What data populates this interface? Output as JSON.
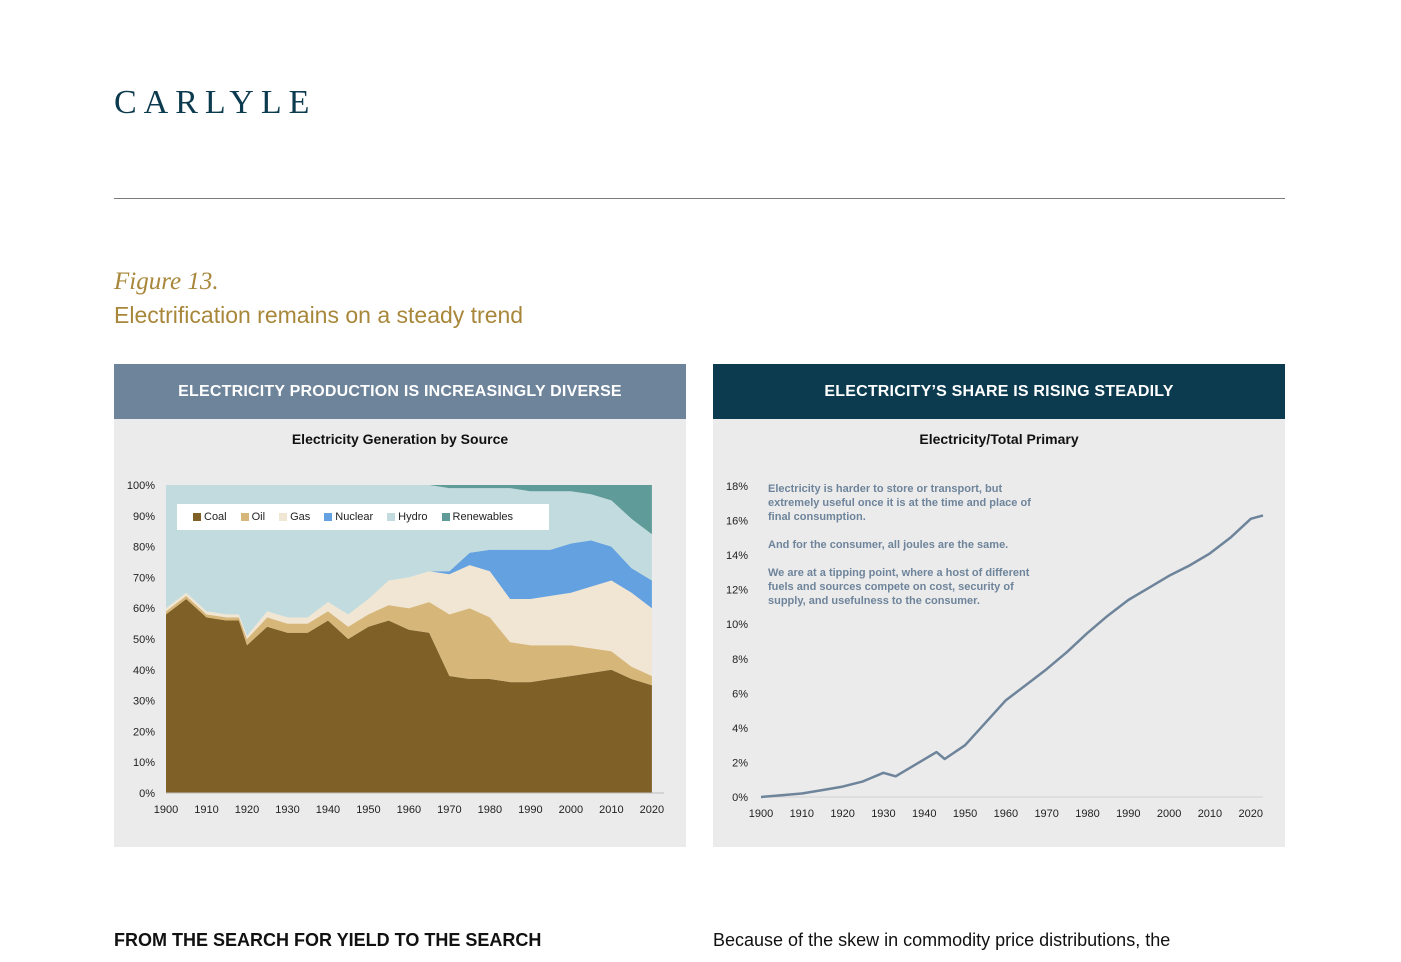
{
  "header": {
    "logo_text": "CARLYLE"
  },
  "figure": {
    "number": "Figure 13.",
    "title": "Electrification remains on a steady trend"
  },
  "left_panel": {
    "header": "ELECTRICITY PRODUCTION IS INCREASINGLY DIVERSE",
    "chart_title": "Electricity Generation by Source"
  },
  "right_panel": {
    "header": "ELECTRICITY’S SHARE IS RISING STEADILY",
    "chart_title": "Electricity/Total Primary",
    "annotation": [
      "Electricity is harder to store or transport, but extremely useful once it is at the time and place of final consumption.",
      "And for the consumer, all joules are the same.",
      "We are at a tipping point, where a host of different fuels and sources  compete on cost, security of supply, and usefulness to the consumer."
    ]
  },
  "colors": {
    "coal": "#7f6127",
    "oil": "#d7b779",
    "gas": "#f1e6d3",
    "nuclear": "#63a1e0",
    "hydro": "#c2dbde",
    "renewables": "#5f9b98",
    "line": "#6e849b",
    "left_header": "#6e849b",
    "right_header": "#0c3a4e",
    "gold": "#a8873a"
  },
  "chart_data": [
    {
      "type": "area",
      "title": "Electricity Generation by Source",
      "stacked": true,
      "x": [
        1900,
        1905,
        1910,
        1915,
        1918,
        1920,
        1925,
        1930,
        1935,
        1940,
        1945,
        1950,
        1955,
        1960,
        1965,
        1970,
        1975,
        1980,
        1985,
        1990,
        1995,
        2000,
        2005,
        2010,
        2015,
        2020
      ],
      "x_ticks": [
        "1900",
        "1910",
        "1920",
        "1930",
        "1940",
        "1950",
        "1960",
        "1970",
        "1980",
        "1990",
        "2000",
        "2010",
        "2020"
      ],
      "y_ticks": [
        "0%",
        "10%",
        "20%",
        "30%",
        "40%",
        "50%",
        "60%",
        "70%",
        "80%",
        "90%",
        "100%"
      ],
      "ylim": [
        0,
        100
      ],
      "legend_position": "top-left",
      "series": [
        {
          "name": "Coal",
          "values": [
            58,
            63,
            57,
            56,
            56,
            48,
            54,
            52,
            52,
            56,
            50,
            54,
            56,
            53,
            52,
            38,
            37,
            37,
            36,
            36,
            37,
            38,
            39,
            40,
            37,
            35
          ]
        },
        {
          "name": "Oil",
          "values": [
            1,
            1,
            1,
            1,
            1,
            2,
            3,
            3,
            3,
            3,
            4,
            4,
            5,
            7,
            10,
            20,
            23,
            20,
            13,
            12,
            11,
            10,
            8,
            6,
            4,
            3
          ]
        },
        {
          "name": "Gas",
          "values": [
            1,
            1,
            1,
            1,
            1,
            1,
            2,
            2,
            2,
            3,
            4,
            5,
            8,
            10,
            10,
            13,
            14,
            15,
            14,
            15,
            16,
            17,
            20,
            23,
            24,
            22
          ]
        },
        {
          "name": "Nuclear",
          "values": [
            0,
            0,
            0,
            0,
            0,
            0,
            0,
            0,
            0,
            0,
            0,
            0,
            0,
            0,
            0,
            1,
            4,
            7,
            16,
            16,
            15,
            16,
            15,
            11,
            8,
            9
          ]
        },
        {
          "name": "Hydro",
          "values": [
            40,
            35,
            41,
            42,
            42,
            49,
            41,
            43,
            43,
            38,
            42,
            37,
            31,
            30,
            28,
            27,
            21,
            20,
            20,
            19,
            19,
            17,
            15,
            15,
            16,
            15
          ]
        },
        {
          "name": "Renewables",
          "values": [
            0,
            0,
            0,
            0,
            0,
            0,
            0,
            0,
            0,
            0,
            0,
            0,
            0,
            0,
            0,
            1,
            1,
            1,
            1,
            2,
            2,
            2,
            3,
            5,
            11,
            16
          ]
        }
      ]
    },
    {
      "type": "line",
      "title": "Electricity/Total Primary",
      "x": [
        1900,
        1905,
        1910,
        1915,
        1920,
        1925,
        1930,
        1933,
        1938,
        1943,
        1945,
        1950,
        1955,
        1960,
        1965,
        1970,
        1975,
        1980,
        1985,
        1990,
        1995,
        2000,
        2005,
        2010,
        2015,
        2020,
        2023
      ],
      "series": [
        {
          "name": "",
          "values": [
            0,
            0.1,
            0.2,
            0.4,
            0.6,
            0.9,
            1.4,
            1.2,
            1.9,
            2.6,
            2.2,
            3.0,
            4.3,
            5.6,
            6.5,
            7.4,
            8.4,
            9.5,
            10.5,
            11.4,
            12.1,
            12.8,
            13.4,
            14.1,
            15.0,
            16.1,
            16.3
          ]
        }
      ],
      "x_ticks": [
        "1900",
        "1910",
        "1920",
        "1930",
        "1940",
        "1950",
        "1960",
        "1970",
        "1980",
        "1990",
        "2000",
        "2010",
        "2020"
      ],
      "y_ticks": [
        "0%",
        "2%",
        "4%",
        "6%",
        "8%",
        "10%",
        "12%",
        "14%",
        "16%",
        "18%"
      ],
      "ylim": [
        0,
        18
      ]
    }
  ],
  "body": {
    "left_heading": "FROM THE SEARCH FOR YIELD TO THE SEARCH",
    "right_text": "Because of the skew in commodity price distributions, the"
  }
}
